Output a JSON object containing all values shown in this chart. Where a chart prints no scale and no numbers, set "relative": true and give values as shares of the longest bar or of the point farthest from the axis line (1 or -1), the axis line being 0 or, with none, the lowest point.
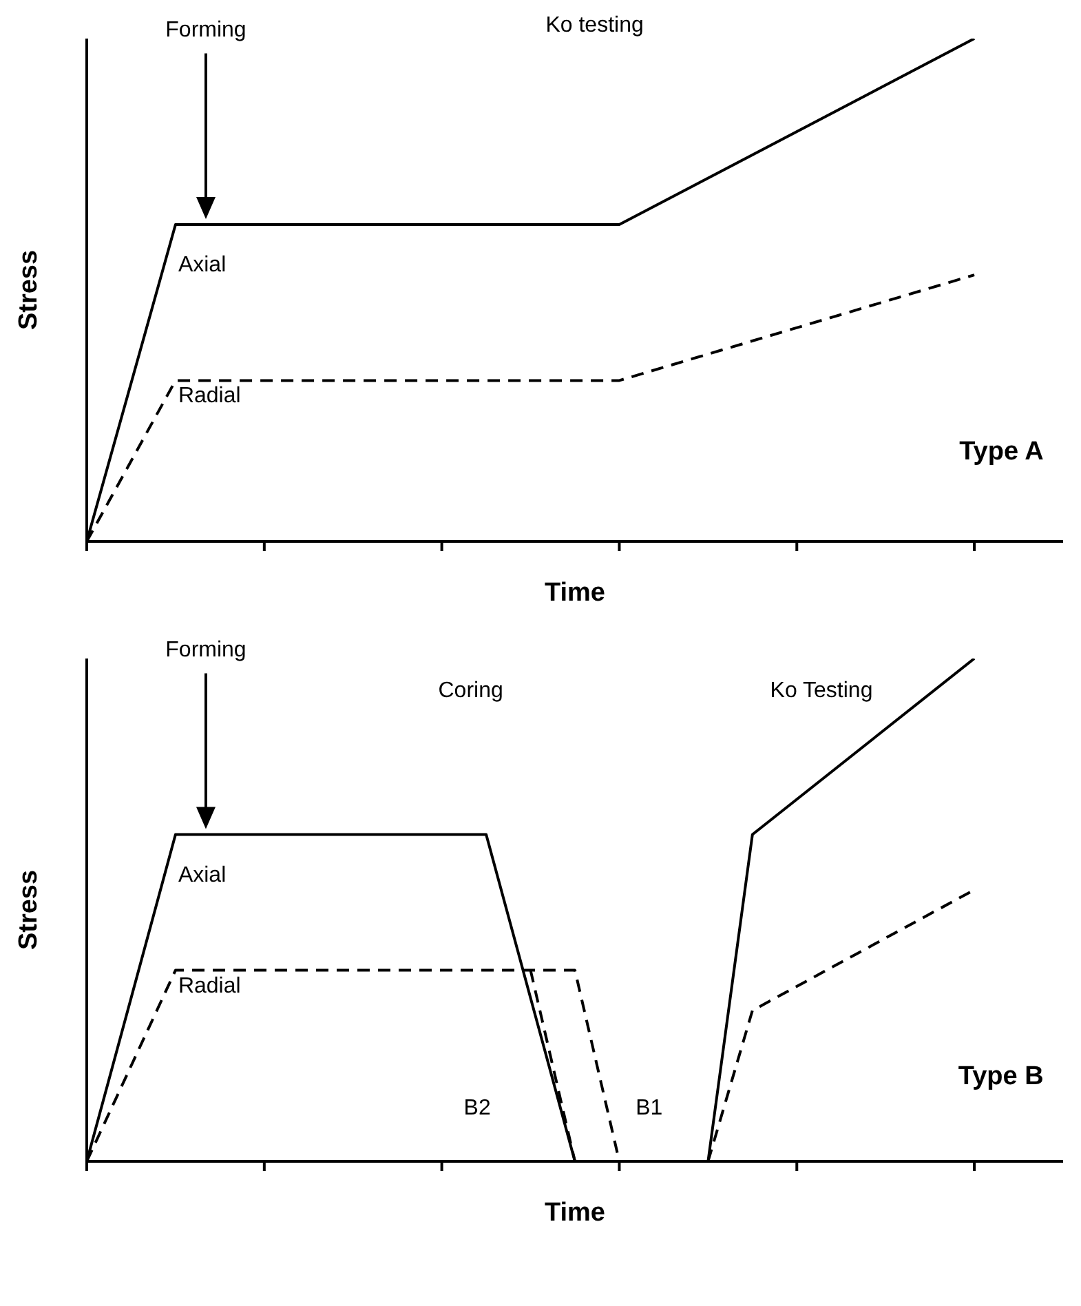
{
  "chart_data": [
    {
      "type": "line",
      "relative": true,
      "xlabel": "Time",
      "ylabel": "Stress",
      "marker": "none",
      "categories": [
        null,
        null,
        null,
        null,
        null,
        null,
        null,
        null,
        null,
        null,
        null,
        null,
        null,
        null,
        null,
        null,
        null,
        null,
        null,
        null,
        null,
        null,
        null
      ],
      "series": [
        {
          "name": "Axial",
          "color": "#000000",
          "line_style": "solid",
          "values": [
            0,
            null,
            0.63,
            null,
            null,
            null,
            null,
            null,
            null,
            null,
            null,
            null,
            0.63,
            null,
            null,
            null,
            null,
            null,
            null,
            null,
            1,
            null,
            null
          ]
        },
        {
          "name": "Radial",
          "color": "#000000",
          "line_style": "dashed",
          "values": [
            0,
            null,
            0.32,
            null,
            null,
            null,
            null,
            null,
            null,
            null,
            null,
            null,
            0.32,
            null,
            null,
            null,
            null,
            null,
            null,
            null,
            0.53,
            null,
            null
          ]
        }
      ],
      "annotations": [
        "Forming",
        "Ko testing",
        "Type A"
      ]
    },
    {
      "type": "line",
      "relative": true,
      "xlabel": "Time",
      "ylabel": "Stress",
      "marker": "none",
      "categories": [
        null,
        null,
        null,
        null,
        null,
        null,
        null,
        null,
        null,
        null,
        null,
        null,
        null,
        null,
        null,
        null,
        null,
        null,
        null,
        null,
        null,
        null,
        null
      ],
      "series": [
        {
          "name": "Axial",
          "color": "#000000",
          "line_style": "solid",
          "values": [
            0,
            null,
            0.65,
            null,
            null,
            null,
            null,
            null,
            null,
            0.65,
            null,
            0,
            null,
            null,
            null,
            null,
            null,
            null,
            null,
            null,
            null,
            null,
            null
          ]
        },
        {
          "name": "Radial",
          "color": "#000000",
          "line_style": "dashed",
          "values": [
            0,
            null,
            0.38,
            null,
            null,
            null,
            null,
            null,
            null,
            null,
            null,
            0.38,
            0,
            null,
            null,
            null,
            null,
            null,
            null,
            null,
            null,
            null,
            null
          ]
        },
        {
          "color": "#000000",
          "line_style": "dashed",
          "values": [
            null,
            null,
            null,
            null,
            null,
            null,
            null,
            null,
            null,
            null,
            0.38,
            0,
            null,
            null,
            null,
            null,
            null,
            null,
            null,
            null,
            null,
            null,
            null
          ]
        },
        {
          "color": "#000000",
          "line_style": "solid",
          "values": [
            null,
            null,
            null,
            null,
            null,
            null,
            null,
            null,
            null,
            null,
            null,
            null,
            null,
            null,
            0,
            0.65,
            null,
            null,
            null,
            null,
            1,
            null,
            null
          ]
        },
        {
          "color": "#000000",
          "line_style": "dashed",
          "values": [
            null,
            null,
            null,
            null,
            null,
            null,
            null,
            null,
            null,
            null,
            null,
            null,
            null,
            null,
            0,
            0.3,
            null,
            null,
            null,
            null,
            0.54,
            null,
            null
          ]
        }
      ],
      "annotations": [
        "Forming",
        "Coring",
        "Ko Testing",
        "Type B",
        "B2",
        "B1"
      ]
    }
  ]
}
